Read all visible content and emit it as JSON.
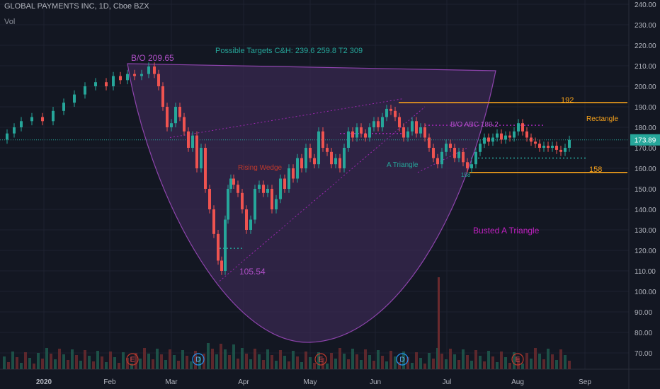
{
  "header": {
    "title": "GLOBAL PAYMENTS INC, 1D, Cboe BZX",
    "volume_label": "Vol"
  },
  "price_axis": {
    "ticks": [
      "240.00",
      "230.00",
      "220.00",
      "210.00",
      "200.00",
      "190.00",
      "180.00",
      "170.00",
      "160.00",
      "150.00",
      "140.00",
      "130.00",
      "120.00",
      "110.00",
      "100.00",
      "90.00",
      "80.00",
      "70.00"
    ],
    "current_price": "173.89"
  },
  "time_axis": {
    "labels": [
      "2020",
      "Feb",
      "Mar",
      "Apr",
      "May",
      "Jun",
      "Jul",
      "Aug",
      "Sep"
    ]
  },
  "annotations": {
    "breakout": "B/O 209.65",
    "targets": "Possible Targets C&H:  239.6  259.8  T2  309",
    "rising_wedge": "Rising Wedge",
    "low": "105.54",
    "a_triangle": "A Triangle",
    "bo_abc": "B/O ABC  189.2",
    "level_192": "192",
    "rectangle": "Rectangle",
    "level_158": "158",
    "level_158_small": "158",
    "busted": "Busted A Triangle"
  },
  "events": [
    "E",
    "D",
    "E",
    "D",
    "E"
  ],
  "colors": {
    "background": "#131722",
    "up": "#26a69a",
    "down": "#ef5350",
    "orange": "#f7a21b",
    "purple": "#9c27b0",
    "cup_fill": "#3a2a52",
    "price_tag": "#26a69a"
  },
  "chart_data": {
    "type": "candlestick",
    "title": "GLOBAL PAYMENTS INC, 1D, Cboe BZX",
    "ylim": [
      65,
      243
    ],
    "grid": true,
    "last_close": 173.89,
    "series_close": [
      [
        0,
        174
      ],
      [
        10,
        177
      ],
      [
        20,
        180
      ],
      [
        30,
        183
      ],
      [
        45,
        185
      ],
      [
        60,
        183
      ],
      [
        75,
        188
      ],
      [
        90,
        192
      ],
      [
        105,
        196
      ],
      [
        120,
        200
      ],
      [
        135,
        202
      ],
      [
        150,
        200
      ],
      [
        160,
        205
      ],
      [
        170,
        203
      ],
      [
        180,
        206
      ],
      [
        190,
        205
      ],
      [
        200,
        206
      ],
      [
        210,
        209.65
      ],
      [
        218,
        206
      ],
      [
        224,
        200
      ],
      [
        230,
        190
      ],
      [
        236,
        180
      ],
      [
        242,
        182
      ],
      [
        248,
        190
      ],
      [
        254,
        185
      ],
      [
        260,
        178
      ],
      [
        266,
        170
      ],
      [
        272,
        176
      ],
      [
        278,
        160
      ],
      [
        284,
        170
      ],
      [
        290,
        150
      ],
      [
        296,
        140
      ],
      [
        302,
        128
      ],
      [
        308,
        115
      ],
      [
        313,
        110
      ],
      [
        318,
        135
      ],
      [
        322,
        150
      ],
      [
        326,
        155
      ],
      [
        330,
        152
      ],
      [
        336,
        148
      ],
      [
        342,
        140
      ],
      [
        348,
        130
      ],
      [
        354,
        135
      ],
      [
        360,
        150
      ],
      [
        366,
        152
      ],
      [
        372,
        148
      ],
      [
        378,
        150
      ],
      [
        384,
        140
      ],
      [
        390,
        145
      ],
      [
        396,
        155
      ],
      [
        402,
        150
      ],
      [
        408,
        160
      ],
      [
        414,
        155
      ],
      [
        420,
        165
      ],
      [
        426,
        160
      ],
      [
        432,
        170
      ],
      [
        438,
        165
      ],
      [
        444,
        162
      ],
      [
        450,
        178
      ],
      [
        456,
        170
      ],
      [
        462,
        168
      ],
      [
        468,
        162
      ],
      [
        474,
        165
      ],
      [
        480,
        160
      ],
      [
        486,
        170
      ],
      [
        492,
        178
      ],
      [
        498,
        175
      ],
      [
        504,
        180
      ],
      [
        510,
        177
      ],
      [
        516,
        175
      ],
      [
        522,
        180
      ],
      [
        528,
        183
      ],
      [
        534,
        180
      ],
      [
        540,
        185
      ],
      [
        546,
        189
      ],
      [
        552,
        188
      ],
      [
        558,
        185
      ],
      [
        564,
        180
      ],
      [
        570,
        175
      ],
      [
        576,
        178
      ],
      [
        582,
        183
      ],
      [
        588,
        177
      ],
      [
        594,
        180
      ],
      [
        600,
        175
      ],
      [
        606,
        170
      ],
      [
        612,
        165
      ],
      [
        618,
        162
      ],
      [
        624,
        168
      ],
      [
        630,
        172
      ],
      [
        636,
        170
      ],
      [
        642,
        165
      ],
      [
        648,
        168
      ],
      [
        654,
        163
      ],
      [
        660,
        160
      ],
      [
        666,
        162
      ],
      [
        672,
        168
      ],
      [
        678,
        172
      ],
      [
        684,
        175
      ],
      [
        690,
        173
      ],
      [
        696,
        175
      ],
      [
        702,
        177
      ],
      [
        708,
        174
      ],
      [
        714,
        176
      ],
      [
        720,
        175
      ],
      [
        726,
        178
      ],
      [
        732,
        182
      ],
      [
        738,
        178
      ],
      [
        744,
        175
      ],
      [
        750,
        173
      ],
      [
        756,
        172
      ],
      [
        762,
        170
      ],
      [
        768,
        171
      ],
      [
        774,
        170
      ],
      [
        780,
        171
      ],
      [
        786,
        169
      ],
      [
        792,
        168
      ],
      [
        798,
        170
      ],
      [
        804,
        173.89
      ]
    ]
  }
}
